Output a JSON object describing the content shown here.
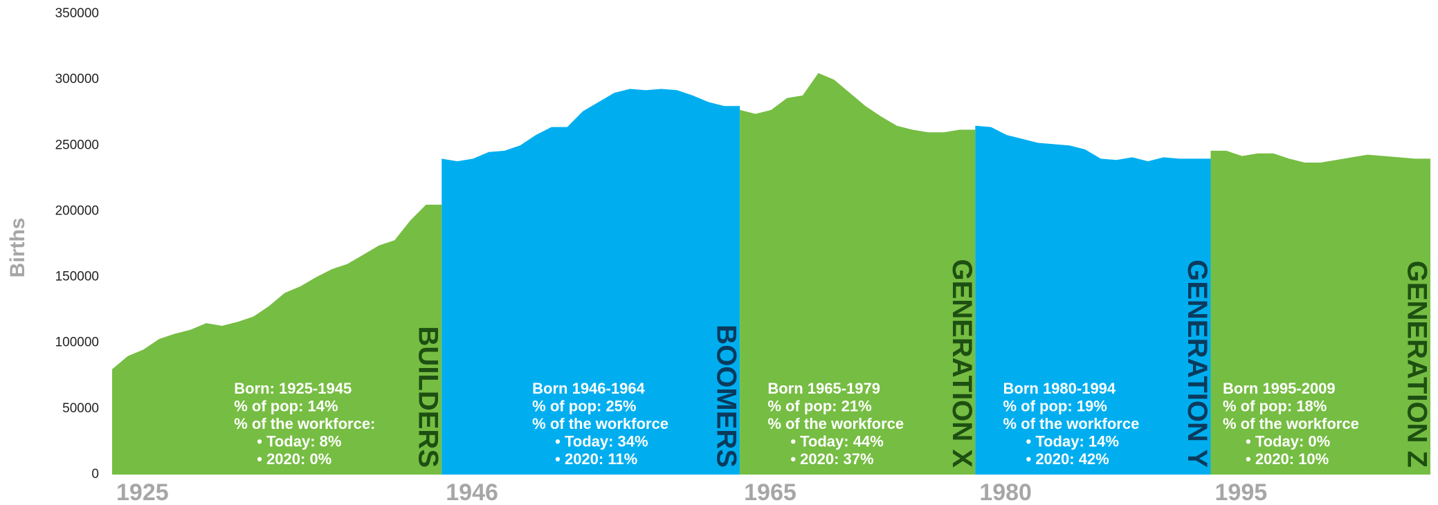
{
  "chart_data": {
    "type": "area",
    "ylabel": "Births",
    "ylim": [
      0,
      350000
    ],
    "yticks": [
      0,
      50000,
      100000,
      150000,
      200000,
      250000,
      300000,
      350000
    ],
    "xlim": [
      1925,
      2009
    ],
    "xticks": [
      1925,
      1946,
      1965,
      1980,
      1995
    ],
    "series": [
      {
        "name": "BUILDERS",
        "color": "#76bd43",
        "label_color": "#1d4f12",
        "x": [
          1925,
          1926,
          1927,
          1928,
          1929,
          1930,
          1931,
          1932,
          1933,
          1934,
          1935,
          1936,
          1937,
          1938,
          1939,
          1940,
          1941,
          1942,
          1943,
          1944,
          1945
        ],
        "values": [
          80000,
          90000,
          95000,
          103000,
          107000,
          110000,
          115000,
          113000,
          116000,
          120000,
          128000,
          138000,
          143000,
          150000,
          156000,
          160000,
          167000,
          174000,
          178000,
          193000,
          205000
        ],
        "info": [
          "Born: 1925-1945",
          "% of pop: 14%",
          "% of the workforce:",
          "• Today: 8%",
          "• 2020: 0%"
        ]
      },
      {
        "name": "BOOMERS",
        "color": "#00aeef",
        "label_color": "#0b3a5c",
        "x": [
          1946,
          1947,
          1948,
          1949,
          1950,
          1951,
          1952,
          1953,
          1954,
          1955,
          1956,
          1957,
          1958,
          1959,
          1960,
          1961,
          1962,
          1963,
          1964
        ],
        "values": [
          240000,
          238000,
          240000,
          245000,
          246000,
          250000,
          258000,
          264000,
          264000,
          276000,
          283000,
          290000,
          293000,
          292000,
          293000,
          292000,
          288000,
          283000,
          280000
        ],
        "info": [
          "Born 1946-1964",
          "% of pop: 25%",
          "% of the workforce",
          "• Today: 34%",
          "• 2020: 11%"
        ]
      },
      {
        "name": "GENERATION X",
        "color": "#76bd43",
        "label_color": "#1d4f12",
        "x": [
          1965,
          1966,
          1967,
          1968,
          1969,
          1970,
          1971,
          1972,
          1973,
          1974,
          1975,
          1976,
          1977,
          1978,
          1979
        ],
        "values": [
          277000,
          274000,
          277000,
          286000,
          288000,
          305000,
          300000,
          290000,
          280000,
          272000,
          265000,
          262000,
          260000,
          260000,
          262000
        ],
        "info": [
          "Born 1965-1979",
          "% of pop: 21%",
          "% of the workforce",
          "• Today: 44%",
          "• 2020: 37%"
        ]
      },
      {
        "name": "GENERATION Y",
        "color": "#00aeef",
        "label_color": "#0b3a5c",
        "x": [
          1980,
          1981,
          1982,
          1983,
          1984,
          1985,
          1986,
          1987,
          1988,
          1989,
          1990,
          1991,
          1992,
          1993,
          1994
        ],
        "values": [
          265000,
          264000,
          258000,
          255000,
          252000,
          251000,
          250000,
          247000,
          240000,
          239000,
          241000,
          238000,
          241000,
          240000,
          240000
        ],
        "info": [
          "Born 1980-1994",
          "% of pop: 19%",
          "% of the workforce",
          "• Today: 14%",
          "• 2020: 42%"
        ]
      },
      {
        "name": "GENERATION Z",
        "color": "#76bd43",
        "label_color": "#1d4f12",
        "x": [
          1995,
          1996,
          1997,
          1998,
          1999,
          2000,
          2001,
          2002,
          2003,
          2004,
          2005,
          2006,
          2007,
          2008,
          2009
        ],
        "values": [
          246000,
          246000,
          242000,
          244000,
          244000,
          240000,
          237000,
          237000,
          239000,
          241000,
          243000,
          242000,
          241000,
          240000,
          240000
        ],
        "info": [
          "Born 1995-2009",
          "% of pop: 18%",
          "% of the workforce",
          "• Today: 0%",
          "• 2020: 10%"
        ]
      }
    ]
  }
}
